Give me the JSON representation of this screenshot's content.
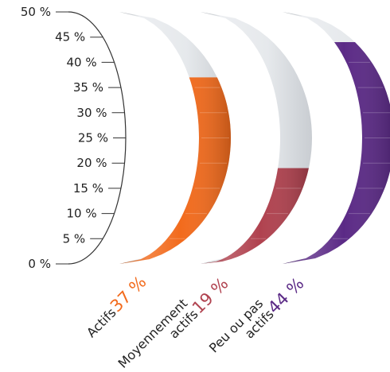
{
  "chart_data": {
    "type": "bar",
    "title": "",
    "xlabel": "",
    "ylabel": "",
    "ylim": [
      0,
      50
    ],
    "y_ticks": [
      "0 %",
      "5 %",
      "10 %",
      "15 %",
      "20 %",
      "25 %",
      "30 %",
      "35 %",
      "40 %",
      "45 %",
      "50 %"
    ],
    "grid": false,
    "legend": "none",
    "categories": [
      {
        "label_lines": [
          "Actifs"
        ],
        "value": 37,
        "value_label": "37 %",
        "color": "#f26b1d"
      },
      {
        "label_lines": [
          "Moyennement",
          "actifs"
        ],
        "value": 19,
        "value_label": "19 %",
        "color": "#b0424f"
      },
      {
        "label_lines": [
          "Peu ou pas",
          "actifs"
        ],
        "value": 44,
        "value_label": "44 %",
        "color": "#5b2a86"
      }
    ],
    "track_color": "#e3e6ea",
    "axis_color": "#333333"
  }
}
